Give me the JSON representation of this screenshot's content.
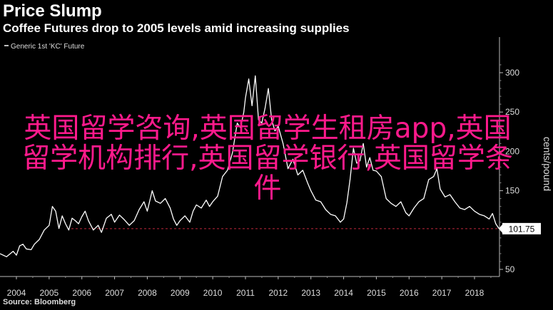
{
  "header": {
    "title": "Price Slump",
    "subtitle": "Coffee Futures drop to 2005 levels amid increasing supplies"
  },
  "source": "Source: Bloomberg",
  "overlay_text": "英国留学咨询,英国留学生租房app,英国留学机构排行,英国留学银行,英国留学条件",
  "colors": {
    "background": "#000000",
    "line": "#ffffff",
    "reference_line": "#c0283c",
    "overlay": "#ff1a8c"
  },
  "chart_data": {
    "type": "line",
    "title": "Price Slump",
    "subtitle": "Coffee Futures drop to 2005 levels amid increasing supplies",
    "ylabel": "cents/pound",
    "xlabel": "",
    "ylim": [
      40,
      315
    ],
    "xlim": [
      2003.5,
      2018.85
    ],
    "x_ticks": [
      "2004",
      "2005",
      "2006",
      "2007",
      "2008",
      "2009",
      "2010",
      "2011",
      "2012",
      "2013",
      "2014",
      "2015",
      "2016",
      "2017",
      "2018"
    ],
    "y_ticks": [
      50,
      100,
      150,
      200,
      250,
      300
    ],
    "last_value_label": "101.75",
    "reference_level": 101.75,
    "grid": false,
    "legend_position": "top-left",
    "series": [
      {
        "name": "Generic 1st 'KC' Future",
        "x": [
          2003.5,
          2003.7,
          2003.9,
          2004.0,
          2004.1,
          2004.2,
          2004.3,
          2004.45,
          2004.55,
          2004.7,
          2004.85,
          2005.0,
          2005.1,
          2005.2,
          2005.3,
          2005.4,
          2005.5,
          2005.6,
          2005.7,
          2005.8,
          2005.9,
          2006.0,
          2006.1,
          2006.2,
          2006.35,
          2006.5,
          2006.6,
          2006.75,
          2006.9,
          2007.0,
          2007.15,
          2007.3,
          2007.45,
          2007.6,
          2007.75,
          2007.9,
          2008.0,
          2008.15,
          2008.25,
          2008.4,
          2008.55,
          2008.7,
          2008.8,
          2008.9,
          2009.0,
          2009.15,
          2009.3,
          2009.4,
          2009.5,
          2009.65,
          2009.8,
          2009.9,
          2010.0,
          2010.15,
          2010.3,
          2010.45,
          2010.6,
          2010.75,
          2010.85,
          2010.95,
          2011.0,
          2011.1,
          2011.2,
          2011.3,
          2011.4,
          2011.5,
          2011.6,
          2011.7,
          2011.8,
          2011.9,
          2012.0,
          2012.15,
          2012.3,
          2012.45,
          2012.6,
          2012.75,
          2012.9,
          2013.0,
          2013.15,
          2013.3,
          2013.45,
          2013.6,
          2013.75,
          2013.9,
          2014.0,
          2014.1,
          2014.2,
          2014.3,
          2014.4,
          2014.5,
          2014.6,
          2014.7,
          2014.8,
          2014.9,
          2015.0,
          2015.15,
          2015.3,
          2015.45,
          2015.6,
          2015.75,
          2015.9,
          2016.0,
          2016.15,
          2016.3,
          2016.45,
          2016.6,
          2016.75,
          2016.85,
          2016.95,
          2017.1,
          2017.25,
          2017.4,
          2017.55,
          2017.7,
          2017.85,
          2018.0,
          2018.15,
          2018.3,
          2018.45,
          2018.55,
          2018.65,
          2018.75
        ],
        "values": [
          70,
          66,
          73,
          68,
          80,
          82,
          76,
          75,
          82,
          88,
          100,
          106,
          130,
          124,
          102,
          118,
          108,
          100,
          115,
          112,
          108,
          117,
          124,
          112,
          100,
          106,
          97,
          115,
          120,
          110,
          119,
          113,
          106,
          112,
          126,
          136,
          124,
          150,
          137,
          134,
          140,
          128,
          114,
          106,
          112,
          118,
          110,
          124,
          132,
          128,
          138,
          130,
          136,
          143,
          168,
          176,
          198,
          236,
          230,
          250,
          268,
          292,
          258,
          296,
          240,
          236,
          255,
          280,
          240,
          226,
          232,
          210,
          178,
          190,
          170,
          176,
          160,
          150,
          138,
          136,
          126,
          120,
          118,
          110,
          114,
          135,
          165,
          204,
          185,
          188,
          210,
          180,
          192,
          176,
          175,
          168,
          140,
          134,
          130,
          136,
          122,
          118,
          128,
          136,
          140,
          164,
          168,
          178,
          152,
          142,
          145,
          136,
          128,
          126,
          130,
          124,
          120,
          118,
          114,
          121,
          108,
          101.75
        ]
      }
    ]
  }
}
